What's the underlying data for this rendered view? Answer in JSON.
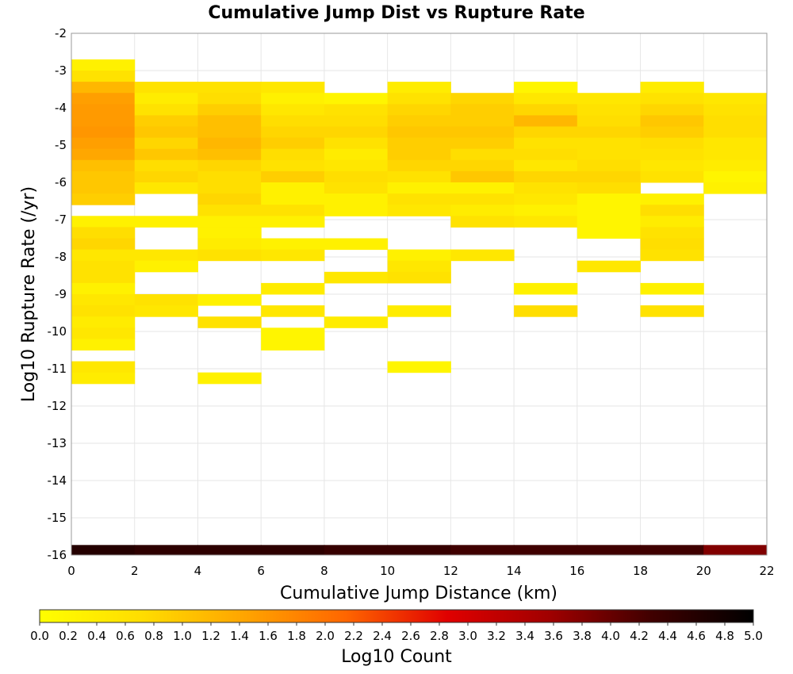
{
  "chart_data": {
    "type": "heatmap",
    "title": "Cumulative Jump Dist vs Rupture Rate",
    "xlabel": "Cumulative Jump Distance (km)",
    "ylabel": "Log10 Rupture Rate (/yr)",
    "xlim": [
      0,
      22
    ],
    "ylim": [
      -16,
      -2
    ],
    "xticks": [
      "0",
      "2",
      "4",
      "6",
      "8",
      "10",
      "12",
      "14",
      "16",
      "18",
      "20",
      "22"
    ],
    "yticks": [
      "-2",
      "-3",
      "-4",
      "-5",
      "-6",
      "-7",
      "-8",
      "-9",
      "-10",
      "-11",
      "-12",
      "-13",
      "-14",
      "-15",
      "-16"
    ],
    "grid": true,
    "colorbar": {
      "label": "Log10 Count",
      "min": 0.0,
      "max": 5.0,
      "ticks": [
        "0.0",
        "0.2",
        "0.4",
        "0.6",
        "0.8",
        "1.0",
        "1.2",
        "1.4",
        "1.6",
        "1.8",
        "2.0",
        "2.2",
        "2.4",
        "2.6",
        "2.8",
        "3.0",
        "3.2",
        "3.4",
        "3.6",
        "3.8",
        "4.0",
        "4.2",
        "4.4",
        "4.6",
        "4.8",
        "5.0"
      ],
      "colors": [
        "#ffff00",
        "#ffdd00",
        "#ffa500",
        "#ff6600",
        "#e00000",
        "#a00000",
        "#400000",
        "#000000"
      ]
    },
    "bin": {
      "x_width": 2,
      "y_height": 0.3
    },
    "cells": [
      [
        0,
        -2.7,
        0.3
      ],
      [
        0,
        -3.0,
        0.6
      ],
      [
        0,
        -3.3,
        1.2
      ],
      [
        0,
        -3.6,
        1.5
      ],
      [
        0,
        -3.9,
        1.55
      ],
      [
        0,
        -4.2,
        1.55
      ],
      [
        0,
        -4.5,
        1.6
      ],
      [
        0,
        -4.8,
        1.5
      ],
      [
        0,
        -5.1,
        1.4
      ],
      [
        0,
        -5.4,
        1.1
      ],
      [
        0,
        -5.7,
        1.0
      ],
      [
        0,
        -6.0,
        1.0
      ],
      [
        0,
        -6.3,
        0.9
      ],
      [
        0,
        -6.9,
        0.3
      ],
      [
        0,
        -7.2,
        0.7
      ],
      [
        0,
        -7.5,
        0.8
      ],
      [
        0,
        -7.8,
        0.5
      ],
      [
        0,
        -8.1,
        0.6
      ],
      [
        0,
        -8.4,
        0.6
      ],
      [
        0,
        -8.7,
        0.3
      ],
      [
        0,
        -9.0,
        0.5
      ],
      [
        0,
        -9.3,
        0.6
      ],
      [
        0,
        -9.6,
        0.4
      ],
      [
        0,
        -9.9,
        0.5
      ],
      [
        0,
        -10.2,
        0.3
      ],
      [
        0,
        -10.8,
        0.5
      ],
      [
        0,
        -11.1,
        0.4
      ],
      [
        2,
        -3.3,
        0.6
      ],
      [
        2,
        -3.6,
        0.4
      ],
      [
        2,
        -3.9,
        0.6
      ],
      [
        2,
        -4.2,
        0.9
      ],
      [
        2,
        -4.5,
        1.0
      ],
      [
        2,
        -4.8,
        0.8
      ],
      [
        2,
        -5.1,
        1.0
      ],
      [
        2,
        -5.4,
        0.7
      ],
      [
        2,
        -5.7,
        0.8
      ],
      [
        2,
        -6.0,
        0.5
      ],
      [
        2,
        -6.9,
        0.3
      ],
      [
        2,
        -7.8,
        0.5
      ],
      [
        2,
        -8.1,
        0.3
      ],
      [
        2,
        -9.0,
        0.6
      ],
      [
        2,
        -9.3,
        0.5
      ],
      [
        4,
        -3.3,
        0.6
      ],
      [
        4,
        -3.6,
        0.7
      ],
      [
        4,
        -3.9,
        0.9
      ],
      [
        4,
        -4.2,
        1.1
      ],
      [
        4,
        -4.5,
        1.1
      ],
      [
        4,
        -4.8,
        1.2
      ],
      [
        4,
        -5.1,
        1.1
      ],
      [
        4,
        -5.4,
        0.8
      ],
      [
        4,
        -5.7,
        0.7
      ],
      [
        4,
        -6.0,
        0.7
      ],
      [
        4,
        -6.3,
        0.8
      ],
      [
        4,
        -6.6,
        0.6
      ],
      [
        4,
        -6.9,
        0.3
      ],
      [
        4,
        -7.2,
        0.3
      ],
      [
        4,
        -7.5,
        0.4
      ],
      [
        4,
        -7.8,
        0.6
      ],
      [
        4,
        -9.0,
        0.3
      ],
      [
        4,
        -9.6,
        0.6
      ],
      [
        4,
        -11.1,
        0.3
      ],
      [
        6,
        -3.3,
        0.5
      ],
      [
        6,
        -3.6,
        0.3
      ],
      [
        6,
        -3.9,
        0.5
      ],
      [
        6,
        -4.2,
        0.7
      ],
      [
        6,
        -4.5,
        0.8
      ],
      [
        6,
        -4.8,
        0.9
      ],
      [
        6,
        -5.1,
        0.7
      ],
      [
        6,
        -5.4,
        0.6
      ],
      [
        6,
        -5.7,
        0.9
      ],
      [
        6,
        -6.0,
        0.3
      ],
      [
        6,
        -6.3,
        0.3
      ],
      [
        6,
        -6.6,
        0.6
      ],
      [
        6,
        -6.9,
        0.3
      ],
      [
        6,
        -7.5,
        0.3
      ],
      [
        6,
        -7.8,
        0.5
      ],
      [
        6,
        -8.7,
        0.4
      ],
      [
        6,
        -9.3,
        0.5
      ],
      [
        6,
        -9.9,
        0.2
      ],
      [
        6,
        -10.2,
        0.2
      ],
      [
        8,
        -3.6,
        0.2
      ],
      [
        8,
        -3.9,
        0.6
      ],
      [
        8,
        -4.2,
        0.7
      ],
      [
        8,
        -4.5,
        0.8
      ],
      [
        8,
        -4.8,
        0.6
      ],
      [
        8,
        -5.1,
        0.4
      ],
      [
        8,
        -5.4,
        0.5
      ],
      [
        8,
        -5.7,
        0.7
      ],
      [
        8,
        -6.0,
        0.6
      ],
      [
        8,
        -6.3,
        0.3
      ],
      [
        8,
        -6.6,
        0.3
      ],
      [
        8,
        -7.5,
        0.3
      ],
      [
        8,
        -8.4,
        0.5
      ],
      [
        8,
        -9.6,
        0.4
      ],
      [
        10,
        -3.3,
        0.4
      ],
      [
        10,
        -3.6,
        0.6
      ],
      [
        10,
        -3.9,
        0.8
      ],
      [
        10,
        -4.2,
        0.9
      ],
      [
        10,
        -4.5,
        1.0
      ],
      [
        10,
        -4.8,
        0.9
      ],
      [
        10,
        -5.1,
        0.9
      ],
      [
        10,
        -5.4,
        0.8
      ],
      [
        10,
        -5.7,
        0.6
      ],
      [
        10,
        -6.0,
        0.3
      ],
      [
        10,
        -6.3,
        0.6
      ],
      [
        10,
        -6.6,
        0.5
      ],
      [
        10,
        -7.8,
        0.3
      ],
      [
        10,
        -8.1,
        0.5
      ],
      [
        10,
        -8.4,
        0.6
      ],
      [
        10,
        -9.3,
        0.4
      ],
      [
        10,
        -10.8,
        0.2
      ],
      [
        12,
        -3.6,
        0.8
      ],
      [
        12,
        -3.9,
        0.9
      ],
      [
        12,
        -4.2,
        0.9
      ],
      [
        12,
        -4.5,
        1.0
      ],
      [
        12,
        -4.8,
        0.9
      ],
      [
        12,
        -5.1,
        0.7
      ],
      [
        12,
        -5.4,
        0.8
      ],
      [
        12,
        -5.7,
        1.0
      ],
      [
        12,
        -6.0,
        0.3
      ],
      [
        12,
        -6.3,
        0.6
      ],
      [
        12,
        -6.6,
        0.4
      ],
      [
        12,
        -6.9,
        0.6
      ],
      [
        12,
        -7.8,
        0.5
      ],
      [
        14,
        -3.3,
        0.2
      ],
      [
        14,
        -3.6,
        0.5
      ],
      [
        14,
        -3.9,
        0.8
      ],
      [
        14,
        -4.2,
        1.2
      ],
      [
        14,
        -4.5,
        0.8
      ],
      [
        14,
        -4.8,
        0.6
      ],
      [
        14,
        -5.1,
        0.7
      ],
      [
        14,
        -5.4,
        0.5
      ],
      [
        14,
        -5.7,
        0.8
      ],
      [
        14,
        -6.0,
        0.6
      ],
      [
        14,
        -6.3,
        0.5
      ],
      [
        14,
        -6.6,
        0.3
      ],
      [
        14,
        -6.9,
        0.5
      ],
      [
        14,
        -8.7,
        0.3
      ],
      [
        14,
        -9.3,
        0.7
      ],
      [
        16,
        -3.6,
        0.5
      ],
      [
        16,
        -3.9,
        0.6
      ],
      [
        16,
        -4.2,
        0.7
      ],
      [
        16,
        -4.5,
        0.8
      ],
      [
        16,
        -4.8,
        0.6
      ],
      [
        16,
        -5.1,
        0.6
      ],
      [
        16,
        -5.4,
        0.7
      ],
      [
        16,
        -5.7,
        0.8
      ],
      [
        16,
        -6.0,
        0.7
      ],
      [
        16,
        -6.3,
        0.2
      ],
      [
        16,
        -6.6,
        0.2
      ],
      [
        16,
        -6.9,
        0.2
      ],
      [
        16,
        -7.2,
        0.2
      ],
      [
        16,
        -8.1,
        0.5
      ],
      [
        18,
        -3.3,
        0.4
      ],
      [
        18,
        -3.6,
        0.6
      ],
      [
        18,
        -3.9,
        0.8
      ],
      [
        18,
        -4.2,
        1.0
      ],
      [
        18,
        -4.5,
        0.9
      ],
      [
        18,
        -4.8,
        0.7
      ],
      [
        18,
        -5.1,
        0.6
      ],
      [
        18,
        -5.4,
        0.5
      ],
      [
        18,
        -5.7,
        0.6
      ],
      [
        18,
        -6.3,
        0.3
      ],
      [
        18,
        -6.6,
        0.7
      ],
      [
        18,
        -6.9,
        0.4
      ],
      [
        18,
        -7.2,
        0.6
      ],
      [
        18,
        -7.5,
        0.7
      ],
      [
        18,
        -7.8,
        0.6
      ],
      [
        18,
        -8.7,
        0.3
      ],
      [
        18,
        -9.3,
        0.6
      ],
      [
        20,
        -3.6,
        0.5
      ],
      [
        20,
        -3.9,
        0.6
      ],
      [
        20,
        -4.2,
        0.7
      ],
      [
        20,
        -4.5,
        0.7
      ],
      [
        20,
        -4.8,
        0.5
      ],
      [
        20,
        -5.1,
        0.5
      ],
      [
        20,
        -5.4,
        0.4
      ],
      [
        20,
        -5.7,
        0.2
      ],
      [
        20,
        -6.0,
        0.3
      ]
    ],
    "floor_row": {
      "y": -16,
      "values": [
        [
          0,
          4.6
        ],
        [
          2,
          4.5
        ],
        [
          4,
          4.5
        ],
        [
          6,
          4.5
        ],
        [
          8,
          4.4
        ],
        [
          10,
          4.4
        ],
        [
          12,
          4.3
        ],
        [
          14,
          4.3
        ],
        [
          16,
          4.3
        ],
        [
          18,
          4.3
        ],
        [
          20,
          3.8
        ]
      ]
    }
  }
}
